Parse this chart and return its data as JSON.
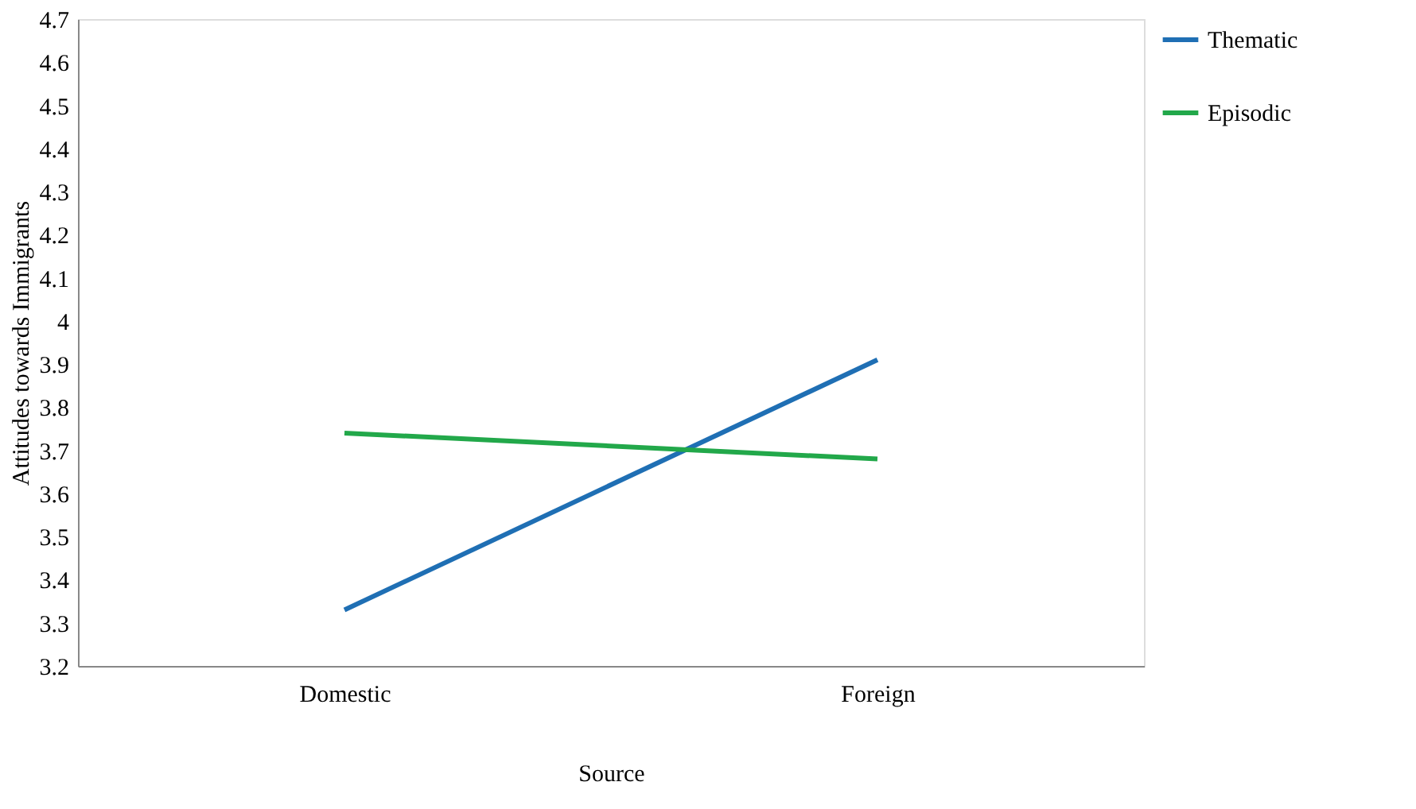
{
  "chart_data": {
    "type": "line",
    "xlabel": "Source",
    "ylabel": "Attitudes towards Immigrants",
    "categories": [
      "Domestic",
      "Foreign"
    ],
    "series": [
      {
        "name": "Thematic",
        "color": "#1f6fb4",
        "values": [
          3.33,
          3.91
        ]
      },
      {
        "name": "Episodic",
        "color": "#22a84a",
        "values": [
          3.74,
          3.68
        ]
      }
    ],
    "ylim": [
      3.2,
      4.7
    ],
    "yticks": [
      3.2,
      3.3,
      3.4,
      3.5,
      3.6,
      3.7,
      3.8,
      3.9,
      4,
      4.1,
      4.2,
      4.3,
      4.4,
      4.5,
      4.6,
      4.7
    ],
    "grid": false,
    "legend": "top right",
    "marker": "none",
    "line_style": "solid"
  }
}
